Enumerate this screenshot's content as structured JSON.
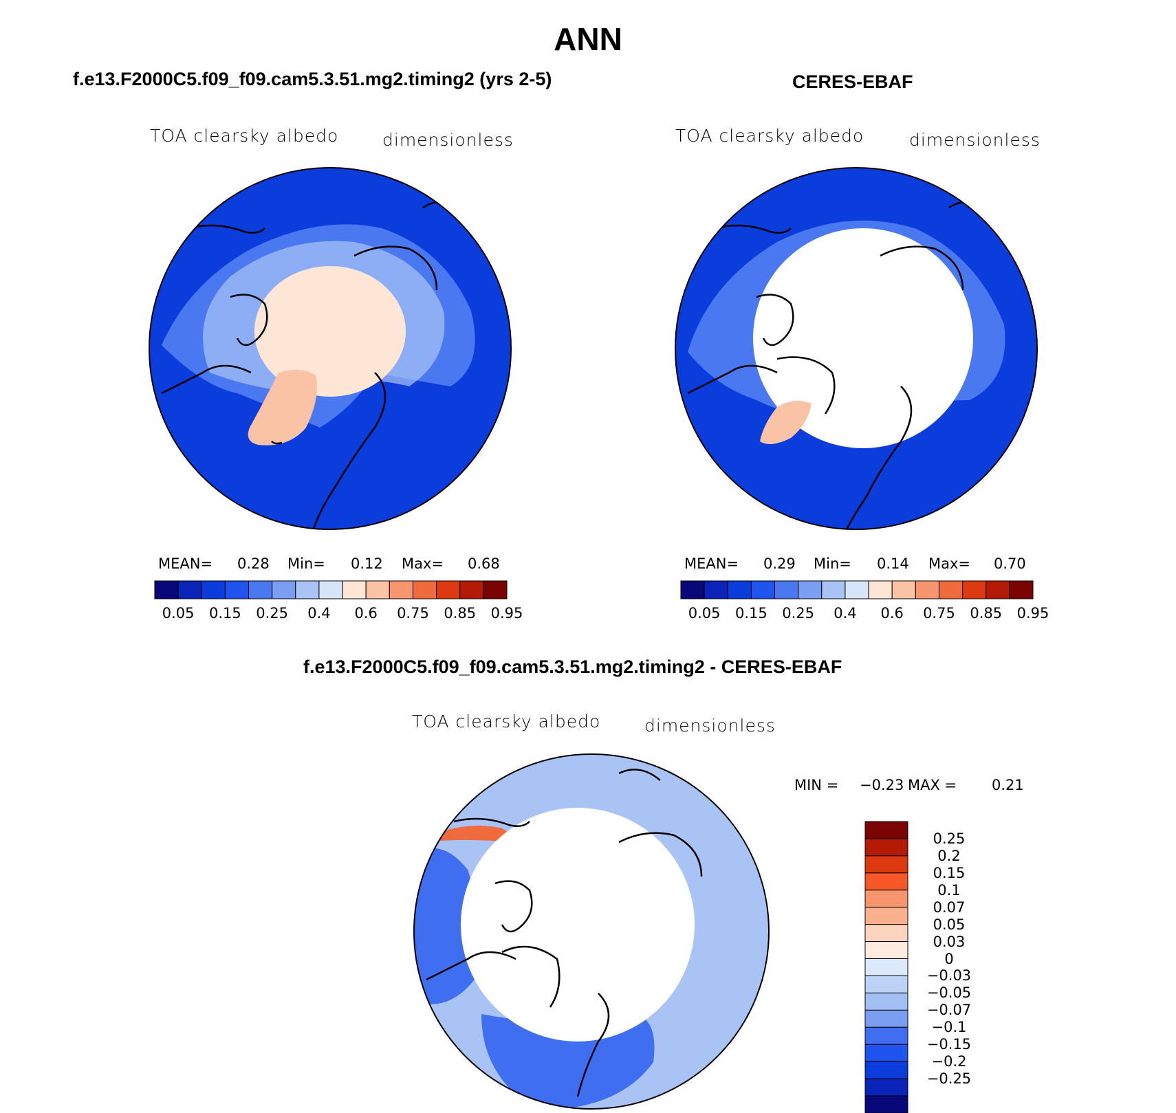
{
  "figure_title": "ANN",
  "panels": [
    {
      "title": "f.e13.F2000C5.f09_f09.cam5.3.51.mg2.timing2 (yrs 2-5)",
      "variable": "TOA clearsky albedo",
      "units": "dimensionless",
      "stats": {
        "mean_label": "MEAN=",
        "mean": "0.28",
        "min_label": "Min=",
        "min": "0.12",
        "max_label": "Max=",
        "max": "0.68"
      }
    },
    {
      "title": "CERES-EBAF",
      "variable": "TOA clearsky albedo",
      "units": "dimensionless",
      "stats": {
        "mean_label": "MEAN=",
        "mean": "0.29",
        "min_label": "Min=",
        "min": "0.14",
        "max_label": "Max=",
        "max": "0.70"
      }
    },
    {
      "title": "f.e13.F2000C5.f09_f09.cam5.3.51.mg2.timing2 - CERES-EBAF",
      "variable": "TOA clearsky albedo",
      "units": "dimensionless",
      "stats": {
        "min_label": "MIN =",
        "min": "−0.23",
        "max_label": "MAX =",
        "max": "0.21"
      }
    }
  ],
  "colorbar_abs": {
    "colors": [
      "#08087a",
      "#0a23b8",
      "#0b3ddc",
      "#1f55ee",
      "#4a78f0",
      "#7a9ff2",
      "#a9c3f5",
      "#d6e6f8",
      "#fde6d6",
      "#fbc3a6",
      "#f7956f",
      "#ef6a3c",
      "#dd3a12",
      "#b41a06",
      "#7a0404"
    ],
    "tick_labels": [
      "0.05",
      "0.15",
      "0.25",
      "0.4",
      "0.6",
      "0.75",
      "0.85",
      "0.95"
    ]
  },
  "colorbar_diff": {
    "colors": [
      "#7a0404",
      "#b41a06",
      "#dd3a12",
      "#f8572a",
      "#f7956f",
      "#f9b08d",
      "#fcd4bd",
      "#fdebe0",
      "#dbe9fa",
      "#bcd2f6",
      "#a3c0f4",
      "#7a9ff2",
      "#3f6ef0",
      "#1f55ee",
      "#0b3ddc",
      "#0a23b8",
      "#08087a"
    ],
    "tick_labels": [
      "0.25",
      "0.2",
      "0.15",
      "0.1",
      "0.07",
      "0.05",
      "0.03",
      "0",
      "−0.03",
      "−0.05",
      "−0.07",
      "−0.1",
      "−0.15",
      "−0.2",
      "−0.25"
    ]
  },
  "map_colors": {
    "ocean_deep": "#0b3ddc",
    "ocean_mid": "#4a78f0",
    "land_light": "#a9c3f5",
    "ice_pale": "#fde6d6",
    "greenland": "#fbc3a6",
    "diff_base": "#a9c3f5",
    "diff_neg": "#3f6ef0",
    "diff_pos": "#ef6a3c",
    "missing": "#ffffff",
    "outline": "#000000"
  }
}
